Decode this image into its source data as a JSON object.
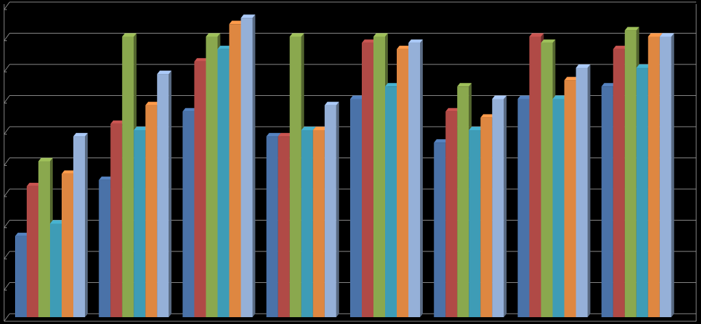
{
  "chart_data": {
    "type": "bar",
    "style": "3d-clustered-column",
    "background": "#000000",
    "grid": true,
    "gridline_color": "#8c8c8c",
    "legend": "none",
    "title": "",
    "xlabel": "",
    "ylabel": "",
    "ylim": [
      0,
      10
    ],
    "gridline_step": 1,
    "categories": [
      "",
      "",
      "",
      "",
      "",
      "",
      "",
      ""
    ],
    "series": [
      {
        "color": "#4a72a8",
        "values": [
          2.6,
          4.4,
          6.6,
          5.8,
          7.0,
          5.6,
          7.0,
          7.4
        ]
      },
      {
        "color": "#b04a46",
        "values": [
          4.2,
          6.2,
          8.2,
          5.8,
          8.8,
          6.6,
          9.0,
          8.6
        ]
      },
      {
        "color": "#8aa84e",
        "values": [
          5.0,
          9.0,
          9.0,
          9.0,
          9.0,
          7.4,
          8.8,
          9.2
        ]
      },
      {
        "color": "#3e9cb6",
        "values": [
          3.0,
          6.0,
          8.6,
          6.0,
          7.4,
          6.0,
          7.0,
          8.0
        ]
      },
      {
        "color": "#de8741",
        "values": [
          4.6,
          6.8,
          9.4,
          6.0,
          8.6,
          6.4,
          7.6,
          9.0
        ]
      },
      {
        "color": "#95b0d8",
        "values": [
          5.8,
          7.8,
          9.6,
          6.8,
          8.8,
          7.0,
          8.0,
          9.0
        ]
      }
    ]
  }
}
